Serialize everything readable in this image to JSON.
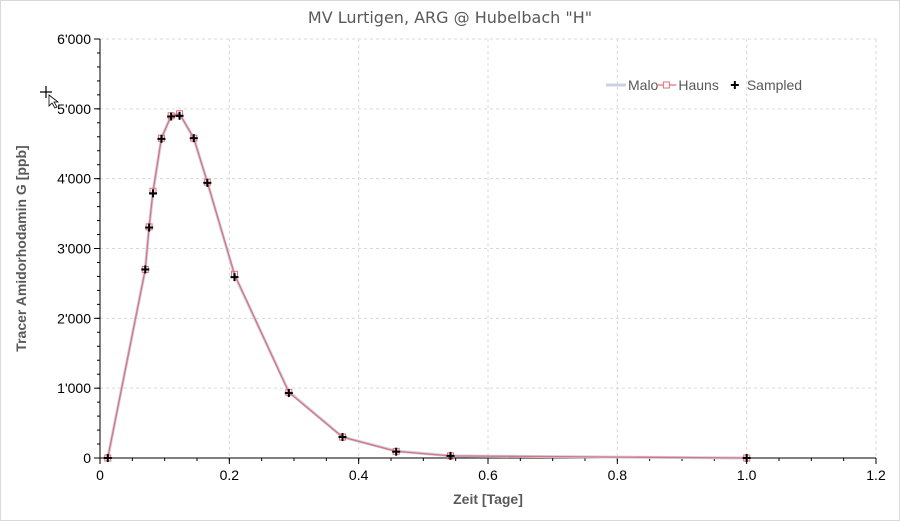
{
  "chart_data": {
    "type": "line",
    "title": "MV Lurtigen, ARG @ Hubelbach \"H\"",
    "xlabel": "Zeit [Tage]",
    "ylabel": "Tracer Amidorhodamin G [ppb]",
    "xlim": [
      0,
      1.2
    ],
    "ylim": [
      0,
      6000
    ],
    "x_ticks": [
      0,
      0.2,
      0.4,
      0.6,
      0.8,
      1.0,
      1.2
    ],
    "x_tick_labels": [
      "0",
      "0.2",
      "0.4",
      "0.6",
      "0.8",
      "1.0",
      "1.2"
    ],
    "y_ticks": [
      0,
      1000,
      2000,
      3000,
      4000,
      5000,
      6000
    ],
    "y_tick_labels": [
      "0",
      "1'000",
      "2'000",
      "3'000",
      "4'000",
      "5'000",
      "6'000"
    ],
    "grid": true,
    "legend_position": "top-right",
    "series": [
      {
        "name": "Malo",
        "color": "#c9d3e6",
        "marker": "none",
        "x": [
          0.012,
          0.07,
          0.076,
          0.082,
          0.095,
          0.11,
          0.123,
          0.145,
          0.166,
          0.208,
          0.292,
          0.375,
          0.458,
          0.542,
          1.0
        ],
        "y": [
          0,
          2700,
          3310,
          3810,
          4580,
          4900,
          4930,
          4580,
          3950,
          2620,
          950,
          300,
          100,
          30,
          0
        ]
      },
      {
        "name": "Hauns",
        "color": "#e0707a",
        "marker": "square",
        "x": [
          0.012,
          0.07,
          0.076,
          0.082,
          0.095,
          0.11,
          0.123,
          0.145,
          0.166,
          0.208,
          0.292,
          0.375,
          0.458,
          0.542,
          1.0
        ],
        "y": [
          0,
          2700,
          3310,
          3820,
          4580,
          4900,
          4930,
          4580,
          3950,
          2630,
          940,
          300,
          95,
          30,
          0
        ]
      },
      {
        "name": "Sampled",
        "color": "#000000",
        "marker": "plus",
        "x": [
          0.012,
          0.07,
          0.076,
          0.082,
          0.095,
          0.11,
          0.123,
          0.145,
          0.166,
          0.208,
          0.292,
          0.375,
          0.458,
          0.542,
          1.0
        ],
        "y": [
          0,
          2700,
          3300,
          3790,
          4570,
          4890,
          4900,
          4580,
          3940,
          2590,
          930,
          300,
          90,
          30,
          0
        ]
      }
    ]
  }
}
